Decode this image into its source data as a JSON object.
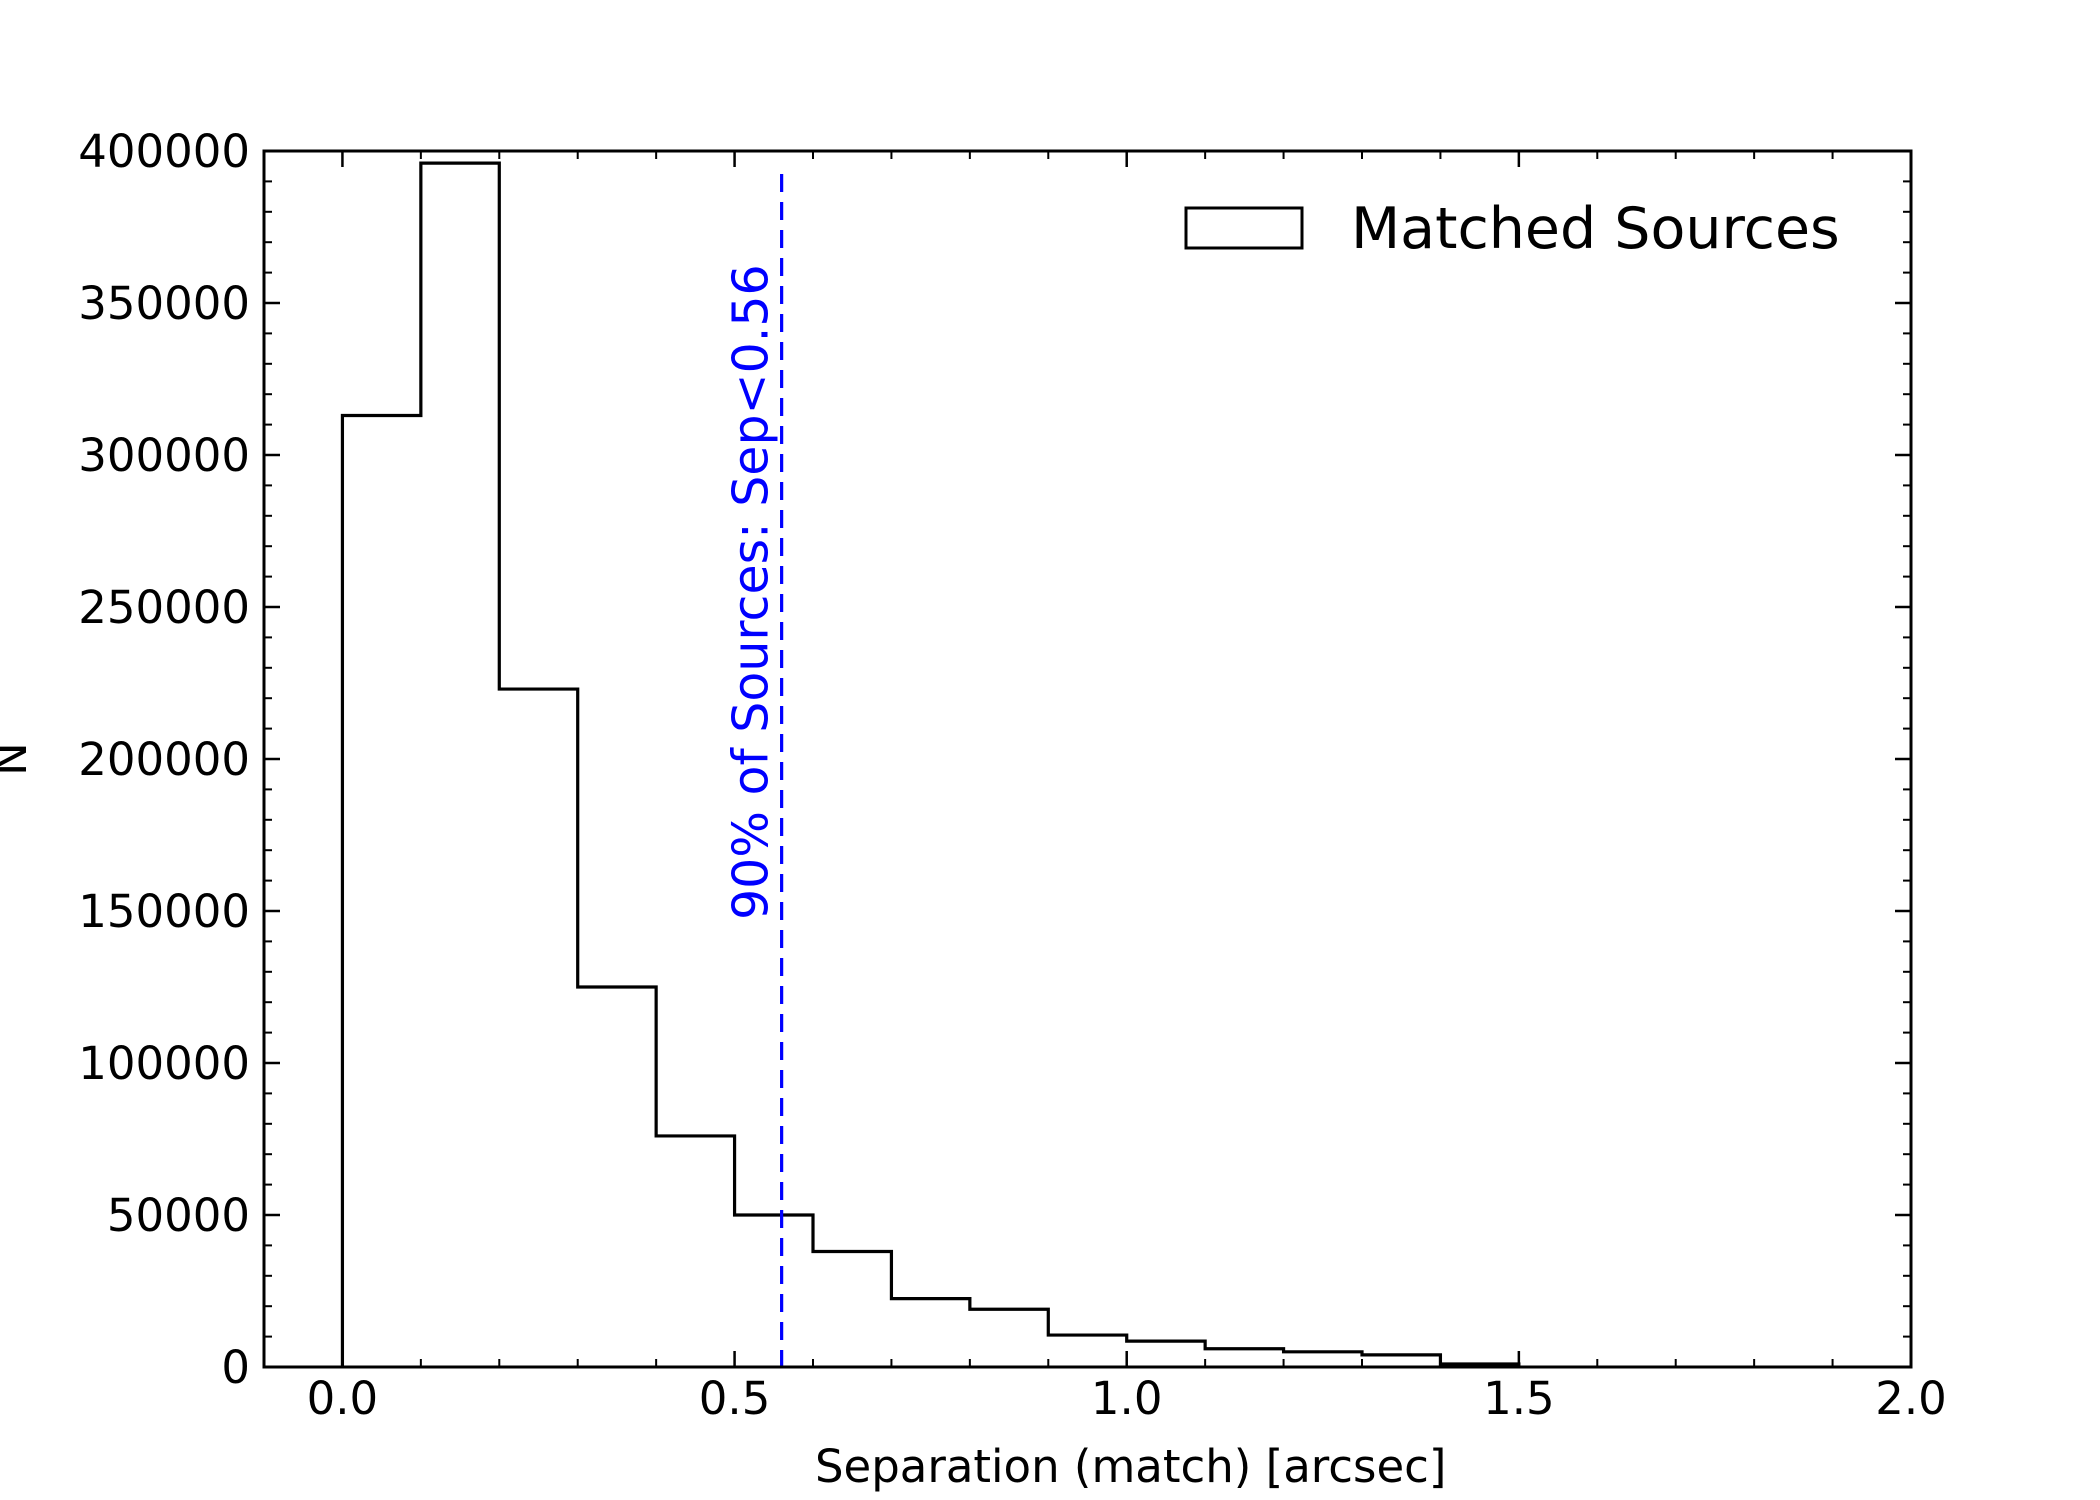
{
  "chart_data": {
    "type": "bar",
    "histtype": "step",
    "xlabel": "Separation (match) [arcsec]",
    "ylabel": "N",
    "xlim": [
      -0.1,
      2.0
    ],
    "ylim": [
      0,
      400000
    ],
    "xticks": [
      0.0,
      0.5,
      1.0,
      1.5,
      2.0
    ],
    "xtick_labels": [
      "0.0",
      "0.5",
      "1.0",
      "1.5",
      "2.0"
    ],
    "yticks": [
      0,
      50000,
      100000,
      150000,
      200000,
      250000,
      300000,
      350000,
      400000
    ],
    "ytick_labels": [
      "0",
      "50000",
      "100000",
      "150000",
      "200000",
      "250000",
      "300000",
      "350000",
      "400000"
    ],
    "grid": false,
    "legend_position": "top-right",
    "bin_edges": [
      0.0,
      0.1,
      0.2,
      0.3,
      0.4,
      0.5,
      0.6,
      0.7,
      0.8,
      0.9,
      1.0,
      1.1,
      1.2,
      1.3,
      1.4,
      1.5
    ],
    "series": [
      {
        "name": "Matched Sources",
        "color": "#000000",
        "values": [
          313000,
          396000,
          223000,
          125000,
          76000,
          50000,
          38000,
          22500,
          19000,
          10500,
          8500,
          6000,
          5000,
          4000,
          1000
        ]
      }
    ],
    "annotations": [
      {
        "type": "vline",
        "x": 0.56,
        "style": "dashed",
        "color": "#0000ff",
        "label": "90% of Sources: Sep<0.56"
      }
    ]
  }
}
